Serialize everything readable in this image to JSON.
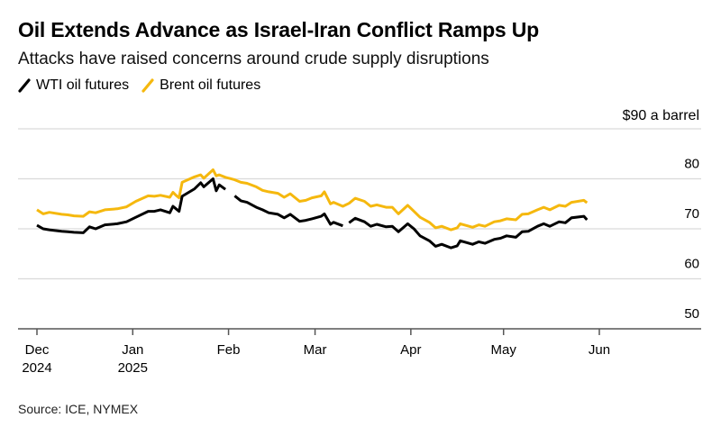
{
  "header": {
    "title": "Oil Extends Advance as Israel-Iran Conflict Ramps Up",
    "subtitle": "Attacks have raised concerns around crude supply disruptions"
  },
  "legend": [
    {
      "label": "WTI oil futures",
      "color": "#000000"
    },
    {
      "label": "Brent oil futures",
      "color": "#F5B80E"
    }
  ],
  "footer": {
    "source": "Source: ICE, NYMEX"
  },
  "chart_data": {
    "type": "line",
    "title": "Oil Extends Advance as Israel-Iran Conflict Ramps Up",
    "subtitle": "Attacks have raised concerns around crude supply disruptions",
    "xlabel": "",
    "ylabel": "$ a barrel",
    "unit_label": "$90 a barrel",
    "ylim": [
      50,
      90
    ],
    "yticks": [
      {
        "value": 90,
        "label": "$90 a barrel"
      },
      {
        "value": 80,
        "label": "80"
      },
      {
        "value": 70,
        "label": "70"
      },
      {
        "value": 60,
        "label": "60"
      },
      {
        "value": 50,
        "label": "50"
      }
    ],
    "xlim": [
      "2024-11-25",
      "2025-06-30"
    ],
    "xticks": [
      {
        "date": "2024-12-01",
        "label": [
          "Dec",
          "2024"
        ]
      },
      {
        "date": "2025-01-01",
        "label": [
          "Jan",
          "2025"
        ]
      },
      {
        "date": "2025-02-01",
        "label": [
          "Feb"
        ]
      },
      {
        "date": "2025-03-01",
        "label": [
          "Mar"
        ]
      },
      {
        "date": "2025-04-01",
        "label": [
          "Apr"
        ]
      },
      {
        "date": "2025-05-01",
        "label": [
          "May"
        ]
      },
      {
        "date": "2025-06-01",
        "label": [
          "Jun"
        ]
      }
    ],
    "grid": true,
    "legend_position": "top-left",
    "series": [
      {
        "name": "WTI oil futures",
        "color": "#000000",
        "points": [
          [
            "2024-12-01",
            70.7
          ],
          [
            "2024-12-03",
            70.0
          ],
          [
            "2024-12-05",
            69.8
          ],
          [
            "2024-12-09",
            69.5
          ],
          [
            "2024-12-11",
            69.4
          ],
          [
            "2024-12-13",
            69.3
          ],
          [
            "2024-12-16",
            69.2
          ],
          [
            "2024-12-18",
            70.4
          ],
          [
            "2024-12-20",
            70.0
          ],
          [
            "2024-12-23",
            70.8
          ],
          [
            "2024-12-27",
            71.0
          ],
          [
            "2024-12-30",
            71.4
          ],
          [
            "2025-01-02",
            72.3
          ],
          [
            "2025-01-06",
            73.5
          ],
          [
            "2025-01-08",
            73.5
          ],
          [
            "2025-01-10",
            73.8
          ],
          [
            "2025-01-13",
            73.2
          ],
          [
            "2025-01-14",
            74.5
          ],
          [
            "2025-01-15",
            74.0
          ],
          [
            "2025-01-16",
            73.5
          ],
          [
            "2025-01-17",
            76.5
          ],
          [
            "2025-01-21",
            78.0
          ],
          [
            "2025-01-23",
            79.2
          ],
          [
            "2025-01-24",
            78.4
          ],
          [
            "2025-01-27",
            80.0
          ],
          [
            "2025-01-28",
            77.6
          ],
          [
            "2025-01-29",
            78.8
          ],
          [
            "2025-01-31",
            77.9
          ],
          [
            null,
            null
          ],
          [
            "2025-02-03",
            76.6
          ],
          [
            "2025-02-05",
            75.6
          ],
          [
            "2025-02-07",
            75.3
          ],
          [
            "2025-02-10",
            74.3
          ],
          [
            "2025-02-12",
            73.8
          ],
          [
            "2025-02-14",
            73.2
          ],
          [
            "2025-02-17",
            72.9
          ],
          [
            "2025-02-19",
            72.2
          ],
          [
            "2025-02-21",
            72.9
          ],
          [
            "2025-02-24",
            71.5
          ],
          [
            "2025-02-26",
            71.7
          ],
          [
            "2025-02-28",
            72.0
          ],
          [
            "2025-03-03",
            72.5
          ],
          [
            "2025-03-04",
            73.0
          ],
          [
            "2025-03-06",
            70.9
          ],
          [
            "2025-03-07",
            71.3
          ],
          [
            "2025-03-10",
            70.6
          ],
          [
            null,
            null
          ],
          [
            "2025-03-12",
            71.2
          ],
          [
            "2025-03-14",
            72.1
          ],
          [
            "2025-03-17",
            71.4
          ],
          [
            "2025-03-19",
            70.5
          ],
          [
            "2025-03-21",
            70.9
          ],
          [
            "2025-03-24",
            70.4
          ],
          [
            "2025-03-26",
            70.5
          ],
          [
            "2025-03-28",
            69.4
          ],
          [
            "2025-03-31",
            71.0
          ],
          [
            "2025-04-02",
            70.0
          ],
          [
            "2025-04-04",
            68.6
          ],
          [
            "2025-04-07",
            67.6
          ],
          [
            "2025-04-09",
            66.5
          ],
          [
            "2025-04-11",
            66.9
          ],
          [
            "2025-04-14",
            66.2
          ],
          [
            "2025-04-16",
            66.6
          ],
          [
            "2025-04-17",
            67.6
          ],
          [
            "2025-04-21",
            66.9
          ],
          [
            "2025-04-23",
            67.4
          ],
          [
            "2025-04-25",
            67.1
          ],
          [
            "2025-04-28",
            67.9
          ],
          [
            "2025-04-30",
            68.1
          ],
          [
            "2025-05-02",
            68.6
          ],
          [
            "2025-05-05",
            68.3
          ],
          [
            "2025-05-07",
            69.4
          ],
          [
            "2025-05-09",
            69.5
          ],
          [
            "2025-05-12",
            70.5
          ],
          [
            "2025-05-14",
            71.0
          ],
          [
            "2025-05-16",
            70.5
          ],
          [
            "2025-05-19",
            71.4
          ],
          [
            "2025-05-21",
            71.2
          ],
          [
            "2025-05-23",
            72.2
          ],
          [
            "2025-05-27",
            72.5
          ],
          [
            "2025-05-28",
            71.8
          ]
        ]
      },
      {
        "name": "Brent oil futures",
        "color": "#F5B80E",
        "points": [
          [
            "2024-12-01",
            73.8
          ],
          [
            "2024-12-03",
            73.0
          ],
          [
            "2024-12-05",
            73.3
          ],
          [
            "2024-12-09",
            72.9
          ],
          [
            "2024-12-11",
            72.8
          ],
          [
            "2024-12-13",
            72.6
          ],
          [
            "2024-12-16",
            72.5
          ],
          [
            "2024-12-18",
            73.4
          ],
          [
            "2024-12-20",
            73.2
          ],
          [
            "2024-12-23",
            73.8
          ],
          [
            "2024-12-27",
            74.0
          ],
          [
            "2024-12-30",
            74.4
          ],
          [
            "2025-01-02",
            75.5
          ],
          [
            "2025-01-06",
            76.6
          ],
          [
            "2025-01-08",
            76.5
          ],
          [
            "2025-01-10",
            76.7
          ],
          [
            "2025-01-13",
            76.3
          ],
          [
            "2025-01-14",
            77.3
          ],
          [
            "2025-01-15",
            76.7
          ],
          [
            "2025-01-16",
            76.2
          ],
          [
            "2025-01-17",
            79.3
          ],
          [
            "2025-01-21",
            80.4
          ],
          [
            "2025-01-23",
            80.8
          ],
          [
            "2025-01-24",
            80.1
          ],
          [
            "2025-01-27",
            81.8
          ],
          [
            "2025-01-28",
            80.6
          ],
          [
            "2025-01-29",
            80.8
          ],
          [
            "2025-01-31",
            80.3
          ],
          [
            "2025-02-03",
            79.8
          ],
          [
            "2025-02-05",
            79.3
          ],
          [
            "2025-02-07",
            79.1
          ],
          [
            "2025-02-10",
            78.4
          ],
          [
            "2025-02-12",
            77.7
          ],
          [
            "2025-02-14",
            77.4
          ],
          [
            "2025-02-17",
            77.1
          ],
          [
            "2025-02-19",
            76.3
          ],
          [
            "2025-02-21",
            77.0
          ],
          [
            "2025-02-24",
            75.5
          ],
          [
            "2025-02-26",
            75.7
          ],
          [
            "2025-02-28",
            76.2
          ],
          [
            "2025-03-03",
            76.6
          ],
          [
            "2025-03-04",
            77.4
          ],
          [
            "2025-03-06",
            75.0
          ],
          [
            "2025-03-07",
            75.3
          ],
          [
            "2025-03-10",
            74.5
          ],
          [
            "2025-03-12",
            75.1
          ],
          [
            "2025-03-14",
            76.1
          ],
          [
            "2025-03-17",
            75.5
          ],
          [
            "2025-03-19",
            74.5
          ],
          [
            "2025-03-21",
            74.8
          ],
          [
            "2025-03-24",
            74.3
          ],
          [
            "2025-03-26",
            74.3
          ],
          [
            "2025-03-28",
            73.0
          ],
          [
            "2025-03-31",
            74.7
          ],
          [
            "2025-04-02",
            73.5
          ],
          [
            "2025-04-04",
            72.3
          ],
          [
            "2025-04-07",
            71.3
          ],
          [
            "2025-04-09",
            70.2
          ],
          [
            "2025-04-11",
            70.5
          ],
          [
            "2025-04-14",
            69.8
          ],
          [
            "2025-04-16",
            70.2
          ],
          [
            "2025-04-17",
            71.0
          ],
          [
            "2025-04-21",
            70.3
          ],
          [
            "2025-04-23",
            70.8
          ],
          [
            "2025-04-25",
            70.5
          ],
          [
            "2025-04-28",
            71.4
          ],
          [
            "2025-04-30",
            71.6
          ],
          [
            "2025-05-02",
            72.0
          ],
          [
            "2025-05-05",
            71.8
          ],
          [
            "2025-05-07",
            72.9
          ],
          [
            "2025-05-09",
            73.0
          ],
          [
            "2025-05-12",
            73.8
          ],
          [
            "2025-05-14",
            74.3
          ],
          [
            "2025-05-16",
            73.8
          ],
          [
            "2025-05-19",
            74.7
          ],
          [
            "2025-05-21",
            74.5
          ],
          [
            "2025-05-23",
            75.3
          ],
          [
            "2025-05-27",
            75.7
          ],
          [
            "2025-05-28",
            75.2
          ]
        ]
      }
    ]
  }
}
